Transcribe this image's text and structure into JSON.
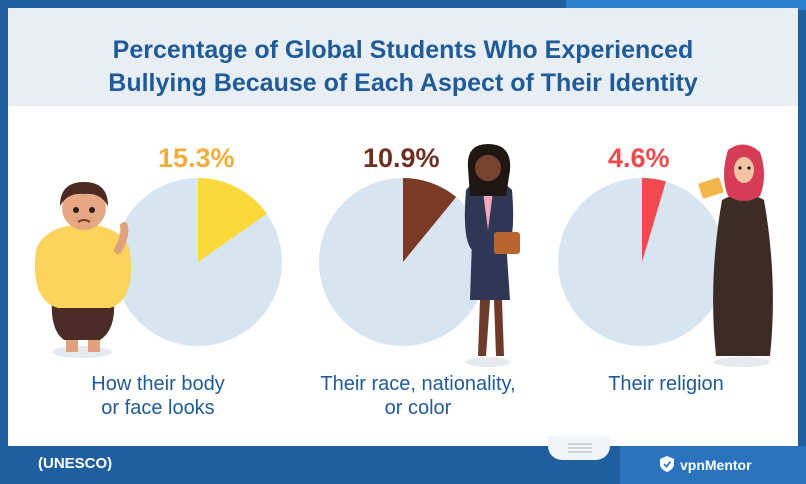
{
  "header": {
    "title_line1": "Percentage of Global Students Who Experienced",
    "title_line2": "Bullying Because of Each Aspect of Their Identity"
  },
  "footer": {
    "source": "(UNESCO)",
    "brand": "vpnMentor"
  },
  "colors": {
    "pie_background": "#d7e5f1",
    "body_slice": "#fcd93a",
    "body_text": "#f4ad3c",
    "race_slice": "#7b3a26",
    "race_text": "#6e2f1f",
    "religion_slice": "#f04a4f",
    "religion_text": "#f04a4f",
    "title": "#1f5b96"
  },
  "chart_data": {
    "type": "pie",
    "title": "Percentage of Global Students Who Experienced Bullying Because of Each Aspect of Their Identity",
    "source": "(UNESCO)",
    "charts": [
      {
        "label_line1": "How their body",
        "label_line2": "or face looks",
        "value": 15.3,
        "value_label": "15.3%",
        "slice_color": "#fcd93a",
        "value_color": "#f4ad3c"
      },
      {
        "label_line1": "Their race, nationality,",
        "label_line2": "or color",
        "value": 10.9,
        "value_label": "10.9%",
        "slice_color": "#7b3a26",
        "value_color": "#6e2f1f"
      },
      {
        "label_line1": "Their religion",
        "label_line2": "",
        "value": 4.6,
        "value_label": "4.6%",
        "slice_color": "#f04a4f",
        "value_color": "#f04a4f"
      }
    ]
  }
}
